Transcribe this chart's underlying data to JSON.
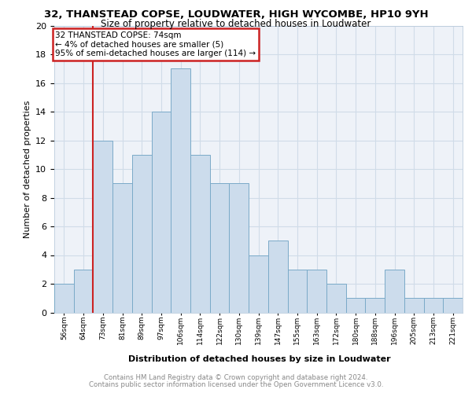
{
  "title1": "32, THANSTEAD COPSE, LOUDWATER, HIGH WYCOMBE, HP10 9YH",
  "title2": "Size of property relative to detached houses in Loudwater",
  "xlabel": "Distribution of detached houses by size in Loudwater",
  "ylabel": "Number of detached properties",
  "categories": [
    "56sqm",
    "64sqm",
    "73sqm",
    "81sqm",
    "89sqm",
    "97sqm",
    "106sqm",
    "114sqm",
    "122sqm",
    "130sqm",
    "139sqm",
    "147sqm",
    "155sqm",
    "163sqm",
    "172sqm",
    "180sqm",
    "188sqm",
    "196sqm",
    "205sqm",
    "213sqm",
    "221sqm"
  ],
  "values": [
    2,
    3,
    12,
    9,
    11,
    14,
    17,
    11,
    9,
    9,
    4,
    5,
    3,
    3,
    2,
    1,
    1,
    3,
    1,
    1,
    1
  ],
  "bar_color": "#ccdcec",
  "bar_edge_color": "#7aaac8",
  "red_line_index": 2,
  "annotation_line1": "32 THANSTEAD COPSE: 74sqm",
  "annotation_line2": "← 4% of detached houses are smaller (5)",
  "annotation_line3": "95% of semi-detached houses are larger (114) →",
  "annotation_box_color": "#ffffff",
  "annotation_box_edge_color": "#cc2222",
  "ylim": [
    0,
    20
  ],
  "yticks": [
    0,
    2,
    4,
    6,
    8,
    10,
    12,
    14,
    16,
    18,
    20
  ],
  "grid_color": "#d0dce8",
  "background_color": "#eef2f8",
  "footer1": "Contains HM Land Registry data © Crown copyright and database right 2024.",
  "footer2": "Contains public sector information licensed under the Open Government Licence v3.0."
}
